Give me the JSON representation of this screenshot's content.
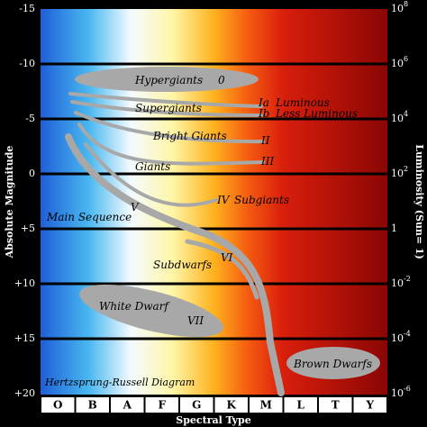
{
  "axes": {
    "left_title": "Absolute Magnitude",
    "right_title": "Luminosity (Sun= 1)",
    "bottom_title": "Spectral Type",
    "left_ticks": [
      "-15",
      "-10",
      "-5",
      "0",
      "+5",
      "+10",
      "+15",
      "+20"
    ],
    "right_ticks": [
      {
        "base": "10",
        "exp": "8"
      },
      {
        "base": "10",
        "exp": "6"
      },
      {
        "base": "10",
        "exp": "4"
      },
      {
        "base": "10",
        "exp": "2"
      },
      {
        "base": "1"
      },
      {
        "base": "10",
        "exp": "-2"
      },
      {
        "base": "10",
        "exp": "-4"
      },
      {
        "base": "10",
        "exp": "-6"
      }
    ],
    "spectral_types": [
      "O",
      "B",
      "A",
      "F",
      "G",
      "K",
      "M",
      "L",
      "T",
      "Y"
    ]
  },
  "regions": {
    "hypergiants": "Hypergiants",
    "hypergiants_class": "0",
    "supergiants": "Supergiants",
    "ia": "Ia",
    "ia_label": "Luminous",
    "ib": "Ib",
    "ib_label": "Less Luminous",
    "bright_giants": "Bright Giants",
    "ii": "II",
    "giants": "Giants",
    "iii": "III",
    "iv": "IV",
    "subgiants": "Subgiants",
    "v": "V",
    "main_sequence": "Main Sequence",
    "vi": "VI",
    "subdwarfs": "Subdwarfs",
    "white_dwarf": "White Dwarf",
    "vii": "VII",
    "brown_dwarfs": "Brown Dwarfs"
  },
  "title": "Hertzsprung-Russell Diagram"
}
